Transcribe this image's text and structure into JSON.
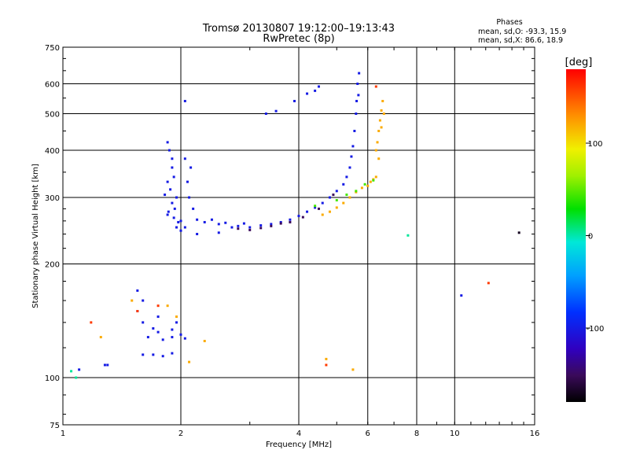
{
  "chart_data": {
    "type": "scatter",
    "title": "Tromsø 20130807 19:12:00–19:13:43",
    "subtitle": "RwPretec (8p)",
    "xlabel": "Frequency [MHz]",
    "ylabel": "Stationary phase Virtual Height [km]",
    "x_scale": "log",
    "y_scale": "log",
    "xlim": [
      1,
      16
    ],
    "ylim": [
      75,
      750
    ],
    "x_ticks": [
      1,
      2,
      4,
      6,
      8,
      10,
      16
    ],
    "y_ticks": [
      75,
      100,
      200,
      300,
      400,
      500,
      600,
      750
    ],
    "grid_x": [
      2,
      4,
      6,
      8,
      10
    ],
    "grid_y": [
      100,
      200,
      300,
      400,
      500,
      600
    ],
    "info": {
      "heading": "Phases",
      "line_o": "mean, sd,O: -93.3, 15.9",
      "line_x": "mean, sd,X:  86.6, 18.9"
    },
    "colorbar": {
      "label": "[deg]",
      "min": -180,
      "max": 180,
      "ticks": [
        100,
        0,
        -100
      ]
    },
    "series": [
      {
        "phase": -100,
        "points": [
          [
            1.85,
            420
          ],
          [
            1.87,
            400
          ],
          [
            1.9,
            380
          ],
          [
            1.9,
            360
          ],
          [
            1.92,
            340
          ],
          [
            1.85,
            330
          ],
          [
            1.88,
            315
          ],
          [
            1.95,
            300
          ],
          [
            1.82,
            305
          ],
          [
            1.9,
            290
          ],
          [
            1.93,
            280
          ],
          [
            1.86,
            275
          ],
          [
            1.92,
            265
          ],
          [
            1.97,
            258
          ],
          [
            1.85,
            270
          ],
          [
            2.0,
            260
          ],
          [
            2.05,
            250
          ],
          [
            2.1,
            300
          ],
          [
            2.08,
            330
          ],
          [
            2.12,
            360
          ],
          [
            2.05,
            380
          ],
          [
            2.15,
            280
          ],
          [
            2.2,
            262
          ],
          [
            2.3,
            258
          ],
          [
            2.4,
            262
          ],
          [
            2.5,
            255
          ],
          [
            2.6,
            257
          ],
          [
            2.7,
            250
          ],
          [
            2.8,
            252
          ],
          [
            2.9,
            256
          ],
          [
            3.0,
            250
          ],
          [
            3.2,
            253
          ],
          [
            3.4,
            255
          ],
          [
            3.6,
            258
          ],
          [
            3.8,
            262
          ],
          [
            4.0,
            268
          ],
          [
            4.2,
            275
          ],
          [
            4.4,
            282
          ],
          [
            4.6,
            290
          ],
          [
            4.8,
            300
          ],
          [
            5.0,
            312
          ],
          [
            5.2,
            325
          ],
          [
            5.3,
            340
          ],
          [
            5.4,
            360
          ],
          [
            5.45,
            385
          ],
          [
            5.5,
            410
          ],
          [
            5.55,
            450
          ],
          [
            5.6,
            500
          ],
          [
            5.62,
            540
          ],
          [
            5.65,
            600
          ],
          [
            5.7,
            640
          ],
          [
            5.68,
            560
          ],
          [
            2.0,
            245
          ],
          [
            2.2,
            240
          ],
          [
            2.5,
            242
          ],
          [
            1.95,
            250
          ],
          [
            3.3,
            500
          ],
          [
            3.5,
            508
          ],
          [
            3.9,
            540
          ],
          [
            4.2,
            565
          ],
          [
            4.5,
            590
          ],
          [
            4.4,
            575
          ],
          [
            2.05,
            540
          ],
          [
            1.1,
            105
          ],
          [
            1.28,
            108
          ],
          [
            1.55,
            150
          ],
          [
            1.6,
            140
          ],
          [
            1.7,
            135
          ],
          [
            1.65,
            128
          ],
          [
            1.75,
            132
          ],
          [
            1.8,
            126
          ],
          [
            1.9,
            128
          ],
          [
            2.0,
            130
          ],
          [
            2.05,
            127
          ],
          [
            1.6,
            115
          ],
          [
            1.7,
            115
          ],
          [
            1.8,
            114
          ],
          [
            1.9,
            116
          ],
          [
            1.75,
            145
          ],
          [
            1.95,
            140
          ],
          [
            1.3,
            108
          ],
          [
            1.6,
            160
          ],
          [
            1.9,
            134
          ],
          [
            1.55,
            170
          ],
          [
            10.4,
            165
          ]
        ]
      },
      {
        "phase": -150,
        "points": [
          [
            2.8,
            248
          ],
          [
            3.0,
            246
          ],
          [
            3.2,
            249
          ],
          [
            3.4,
            252
          ],
          [
            3.6,
            256
          ],
          [
            3.8,
            258
          ],
          [
            4.1,
            266
          ],
          [
            4.5,
            280
          ],
          [
            4.9,
            305
          ]
        ]
      },
      {
        "phase": 120,
        "points": [
          [
            4.6,
            270
          ],
          [
            4.8,
            275
          ],
          [
            5.0,
            282
          ],
          [
            5.2,
            290
          ],
          [
            5.4,
            300
          ],
          [
            5.6,
            310
          ],
          [
            5.8,
            318
          ],
          [
            6.0,
            322
          ],
          [
            6.1,
            330
          ],
          [
            6.2,
            335
          ],
          [
            6.3,
            340
          ],
          [
            6.35,
            420
          ],
          [
            6.4,
            450
          ],
          [
            6.45,
            480
          ],
          [
            6.5,
            510
          ],
          [
            6.55,
            540
          ],
          [
            6.6,
            500
          ],
          [
            6.3,
            400
          ],
          [
            6.4,
            380
          ],
          [
            6.5,
            460
          ],
          [
            1.5,
            160
          ],
          [
            1.95,
            145
          ],
          [
            1.25,
            128
          ],
          [
            1.85,
            155
          ],
          [
            2.1,
            110
          ],
          [
            2.3,
            125
          ],
          [
            5.5,
            105
          ],
          [
            4.7,
            112
          ]
        ]
      },
      {
        "phase": 40,
        "points": [
          [
            4.4,
            285
          ],
          [
            5.0,
            295
          ],
          [
            5.3,
            305
          ],
          [
            5.6,
            312
          ],
          [
            5.9,
            325
          ],
          [
            6.2,
            333
          ]
        ]
      },
      {
        "phase": 160,
        "points": [
          [
            1.18,
            140
          ],
          [
            1.55,
            150
          ],
          [
            1.75,
            155
          ],
          [
            4.7,
            108
          ],
          [
            6.3,
            590
          ],
          [
            12.2,
            178
          ]
        ]
      },
      {
        "phase": 0,
        "points": [
          [
            7.6,
            238
          ],
          [
            1.08,
            100
          ],
          [
            1.05,
            104
          ]
        ]
      },
      {
        "phase": -170,
        "points": [
          [
            14.6,
            242
          ]
        ]
      }
    ]
  }
}
